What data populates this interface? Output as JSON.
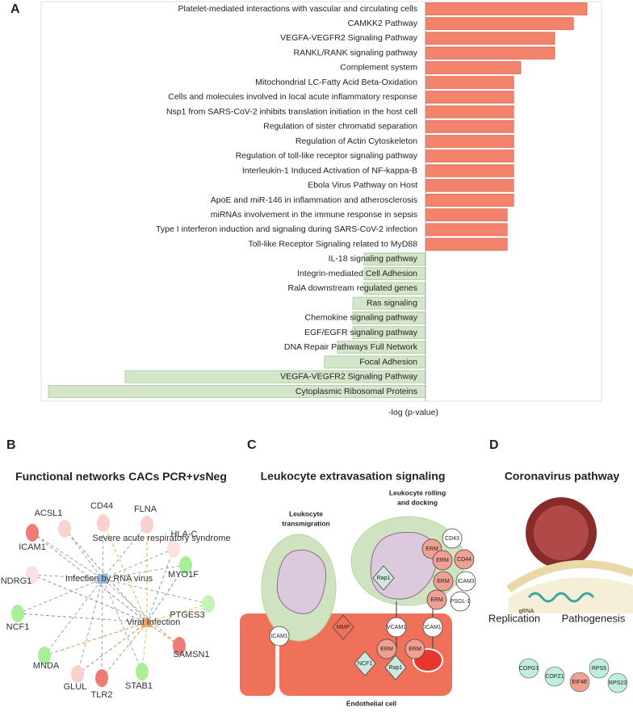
{
  "chart_data": {
    "type": "bar",
    "orientation": "horizontal",
    "panel": "A",
    "categories": [
      "Platelet-mediated interactions with vascular and circulating cells",
      "CAMKK2  Pathway",
      "VEGFA-VEGFR2 Signaling Pathway",
      "RANKL/RANK signaling pathway",
      "Complement system",
      "Mitochondrial LC-Fatty Acid Beta-Oxidation",
      "Cells and molecules involved in local acute inflammatory response",
      "Nsp1 from SARS-CoV-2 inhibits translation initiation in the host cell",
      "Regulation of sister chromatid separation",
      "Regulation of Actin Cytoskeleton",
      "Regulation of toll-like receptor signaling pathway",
      "Interleukin-1 Induced Activation of NF-kappa-B",
      "Ebola Virus Pathway on Host",
      "ApoE and miR-146 in inflammation and atherosclerosis",
      "miRNAs involvement in the immune response in sepsis",
      "Type I interferon induction and signaling during SARS-CoV-2 infection",
      "Toll-like Receptor Signaling related to MyD88",
      "IL-18 signaling pathway",
      "Integrin-mediated Cell Adhesion",
      "RalA downstream regulated genes",
      "Ras signaling",
      "Chemokine signaling pathway",
      "EGF/EGFR signaling pathway",
      "DNA Repair Pathways Full Network",
      "Focal Adhesion",
      "VEGFA-VEGFR2 Signaling Pathway",
      "Cytoplasmic Ribosomal Proteins"
    ],
    "values": [
      5.0,
      4.58,
      4.0,
      4.0,
      2.95,
      2.73,
      2.73,
      2.73,
      2.73,
      2.73,
      2.73,
      2.73,
      2.73,
      2.73,
      2.53,
      2.53,
      2.53,
      -1.9,
      -1.9,
      -1.9,
      -2.25,
      -2.25,
      -2.25,
      -2.73,
      -3.13,
      -9.3,
      -11.68
    ],
    "positive_color": "#f4836c",
    "negative_color": "#d3e6c9",
    "xlabel": "-log (p-value)",
    "xlim": [
      -11.9,
      5.45
    ]
  },
  "panel_b": {
    "letter": "B",
    "title": [
      "Functional networks CACs PCR+",
      "vs",
      "Neg"
    ],
    "hubs": [
      "Severe acute respiratory syndrome",
      "Infection by RNA virus",
      "Viral Infection"
    ],
    "nodes": [
      "CD44",
      "FLNA",
      "ACSL1",
      "HLA-C",
      "ICAM1",
      "MYO1F",
      "NDRG1",
      "PTGES3",
      "NCF1",
      "SAMSN1",
      "MNDA",
      "GLUL",
      "TLR2",
      "STAB1"
    ]
  },
  "panel_c": {
    "letter": "C",
    "title": "Leukocyte extravasation signaling",
    "transmigration": [
      "Leukocyte",
      "transmigration"
    ],
    "rolling": [
      "Leukocyte rolling",
      "and docking"
    ],
    "leukocyte_molecules": [
      "ERM",
      "CD43",
      "ERM",
      "CD44",
      "ERM",
      "ICAM3",
      "ERM",
      "PSGL-1",
      "Rap1"
    ],
    "endothelial_molecules": [
      "VCAM1",
      "ICAM1",
      "ERM",
      "ERM",
      "ICAM1",
      "MMP",
      "NCF1",
      "Rap1"
    ],
    "endothelial": "Endothelial cell"
  },
  "panel_d": {
    "letter": "D",
    "title": "Coronavirus pathway",
    "grna": "gRNA",
    "groups": [
      "Replication",
      "Pathogenesis"
    ],
    "genes": [
      "COPG1",
      "COPZ1",
      "EIF4E",
      "RPS5",
      "RPS23"
    ]
  }
}
